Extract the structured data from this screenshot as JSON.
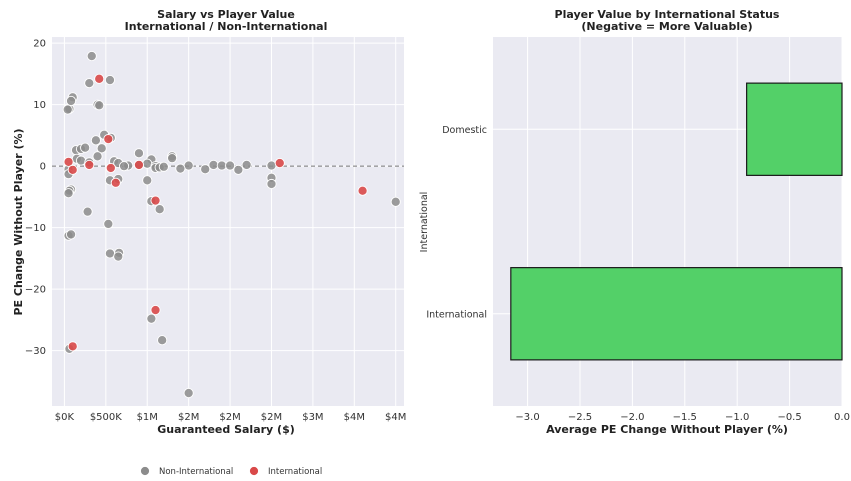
{
  "chart_data": [
    {
      "type": "scatter",
      "title": "Salary vs Player Value",
      "subtitle": "International / Non-International",
      "xlabel": "Guaranteed Salary ($)",
      "ylabel": "PE Change Without Player (%)",
      "xlim": [
        -150000,
        4100000
      ],
      "ylim": [
        -39,
        21
      ],
      "x_ticks": [
        0,
        500000,
        1000000,
        1500000,
        2000000,
        2500000,
        3000000,
        3500000,
        4000000
      ],
      "x_tick_labels": [
        "$0K",
        "$500K",
        "$1M",
        "$2M",
        "$2M",
        "$2M",
        "$3M",
        "$4M",
        "$4M"
      ],
      "y_ticks": [
        20,
        10,
        0,
        -10,
        -20,
        -30
      ],
      "y_tick_labels": [
        "20",
        "10",
        "0",
        "−10",
        "−20",
        "−30"
      ],
      "reference_line_y": 0,
      "grid": true,
      "legend": {
        "placement": "bottom-center",
        "entries": [
          "Non-International",
          "International"
        ]
      },
      "series": [
        {
          "name": "Non-International",
          "color": "#8c8c8c",
          "points": [
            [
              330000,
              17.9
            ],
            [
              60000,
              9.3
            ],
            [
              40000,
              9.2
            ],
            [
              100000,
              11.2
            ],
            [
              80000,
              10.6
            ],
            [
              300000,
              13.5
            ],
            [
              550000,
              14.0
            ],
            [
              400000,
              10.0
            ],
            [
              420000,
              9.9
            ],
            [
              380000,
              4.2
            ],
            [
              560000,
              4.6
            ],
            [
              480000,
              5.1
            ],
            [
              450000,
              2.9
            ],
            [
              140000,
              2.6
            ],
            [
              200000,
              2.8
            ],
            [
              250000,
              3.0
            ],
            [
              400000,
              1.6
            ],
            [
              600000,
              0.8
            ],
            [
              900000,
              2.1
            ],
            [
              1300000,
              1.6
            ],
            [
              1300000,
              1.3
            ],
            [
              1050000,
              1.1
            ],
            [
              150000,
              1.2
            ],
            [
              200000,
              0.9
            ],
            [
              300000,
              0.6
            ],
            [
              650000,
              0.5
            ],
            [
              770000,
              0.1
            ],
            [
              720000,
              0.0
            ],
            [
              900000,
              0.2
            ],
            [
              1000000,
              0.4
            ],
            [
              1100000,
              0.0
            ],
            [
              1500000,
              0.1
            ],
            [
              1800000,
              0.2
            ],
            [
              1900000,
              0.1
            ],
            [
              2000000,
              0.1
            ],
            [
              2200000,
              0.2
            ],
            [
              2500000,
              0.1
            ],
            [
              1700000,
              -0.5
            ],
            [
              1400000,
              -0.4
            ],
            [
              1100000,
              -0.3
            ],
            [
              1150000,
              -0.2
            ],
            [
              1200000,
              -0.1
            ],
            [
              50000,
              -0.5
            ],
            [
              50000,
              -1.3
            ],
            [
              550000,
              -2.3
            ],
            [
              650000,
              -2.1
            ],
            [
              1000000,
              -2.3
            ],
            [
              1050000,
              -5.7
            ],
            [
              2100000,
              -0.6
            ],
            [
              2500000,
              -1.9
            ],
            [
              2500000,
              -2.9
            ],
            [
              80000,
              -3.8
            ],
            [
              60000,
              -4.0
            ],
            [
              50000,
              -4.4
            ],
            [
              280000,
              -7.4
            ],
            [
              1150000,
              -7.0
            ],
            [
              530000,
              -9.4
            ],
            [
              50000,
              -11.3
            ],
            [
              80000,
              -11.1
            ],
            [
              550000,
              -14.2
            ],
            [
              660000,
              -14.1
            ],
            [
              650000,
              -14.7
            ],
            [
              4000000,
              -5.8
            ],
            [
              1050000,
              -24.8
            ],
            [
              1180000,
              -28.3
            ],
            [
              60000,
              -29.7
            ],
            [
              1500000,
              -36.9
            ]
          ]
        },
        {
          "name": "International",
          "color": "#d94949",
          "points": [
            [
              420000,
              14.2
            ],
            [
              530000,
              4.4
            ],
            [
              50000,
              0.7
            ],
            [
              300000,
              0.2
            ],
            [
              560000,
              -0.3
            ],
            [
              100000,
              -0.6
            ],
            [
              900000,
              0.2
            ],
            [
              620000,
              -2.7
            ],
            [
              1100000,
              -5.6
            ],
            [
              1100000,
              -23.4
            ],
            [
              2600000,
              0.5
            ],
            [
              3600000,
              -4.0
            ],
            [
              100000,
              -29.3
            ]
          ]
        }
      ]
    },
    {
      "type": "bar",
      "orientation": "horizontal",
      "title": "Player Value by International Status",
      "subtitle": "(Negative = More Valuable)",
      "xlabel": "Average PE Change Without Player (%)",
      "ylabel": "International",
      "categories": [
        "Domestic",
        "International"
      ],
      "values": [
        -0.91,
        -3.16
      ],
      "xlim": [
        -3.33,
        0.0
      ],
      "x_ticks": [
        -3.0,
        -2.5,
        -2.0,
        -1.5,
        -1.0,
        -0.5,
        0.0
      ],
      "x_tick_labels": [
        "−3.0",
        "−2.5",
        "−2.0",
        "−1.5",
        "−1.0",
        "−0.5",
        "0.0"
      ],
      "bar_color": "#53d068",
      "edge_color": "#1a1a1a",
      "grid": true
    }
  ]
}
